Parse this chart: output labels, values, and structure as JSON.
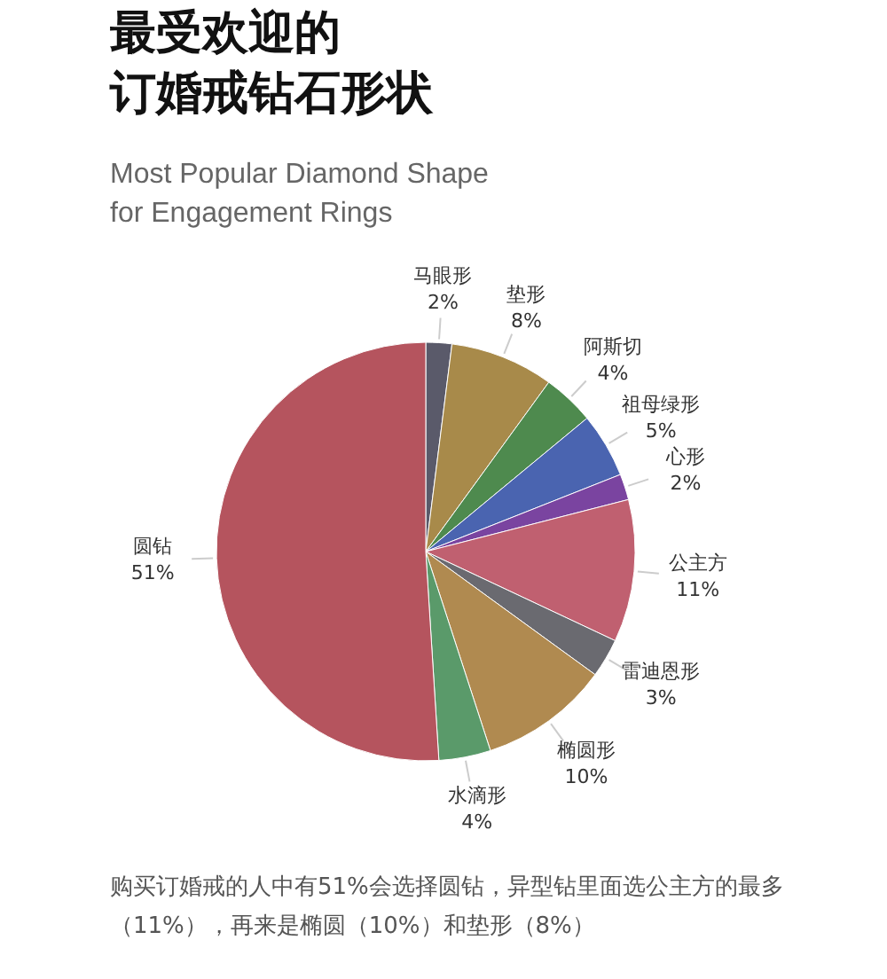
{
  "chart_data": {
    "type": "pie",
    "title": "最受欢迎的订婚戒钻石形状",
    "subtitle": "Most Popular Diamond Shape\nfor Engagement Rings",
    "categories": [
      "马眼形",
      "垫形",
      "阿斯切",
      "祖母绿形",
      "心形",
      "公主方",
      "雷迪恩形",
      "椭圆形",
      "水滴形",
      "圆钻"
    ],
    "values": [
      2,
      8,
      4,
      5,
      2,
      11,
      3,
      10,
      4,
      51
    ],
    "value_labels": [
      "2%",
      "8%",
      "4%",
      "5%",
      "2%",
      "11%",
      "3%",
      "10%",
      "4%",
      "51%"
    ],
    "colors": [
      "#5a5a6a",
      "#a88a4a",
      "#4e8a4e",
      "#4a64b0",
      "#7a44a0",
      "#c06070",
      "#6a6a70",
      "#b08a50",
      "#5a9a6a",
      "#b5545e"
    ],
    "annotations": [
      "购买订婚戒的人中有51%会选择圆钻，异型钻里面选公主方的最多（11%），再来是椭圆（10%）和垫形（8%）"
    ]
  }
}
